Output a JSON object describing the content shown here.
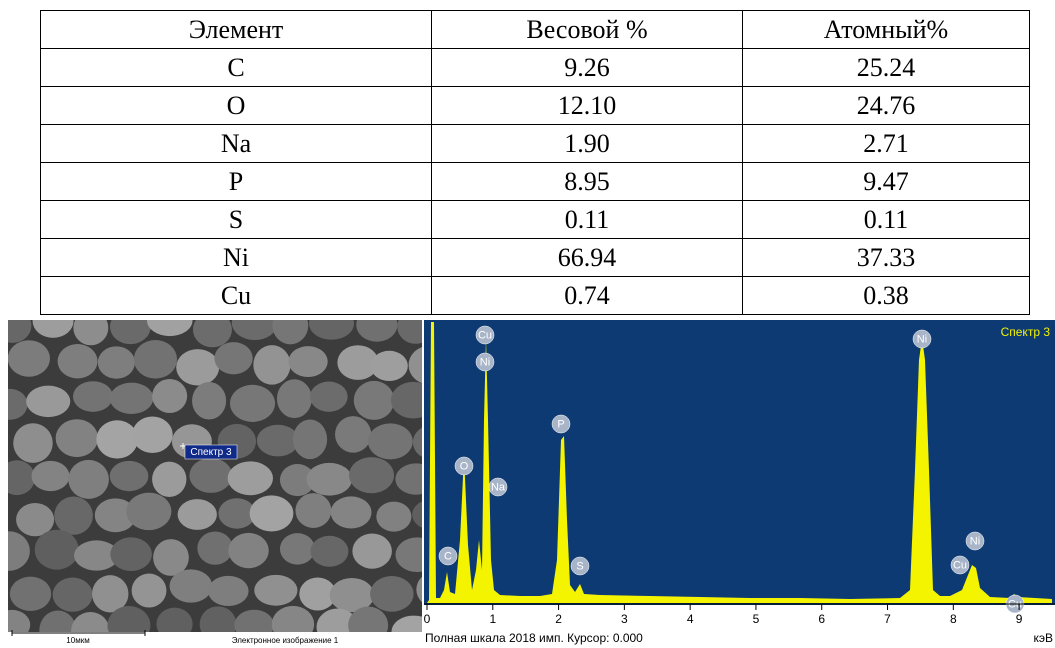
{
  "table": {
    "header": [
      "Элемент",
      "Весовой %",
      "Атомный%"
    ],
    "rows": [
      [
        "C",
        "9.26",
        "25.24"
      ],
      [
        "O",
        "12.10",
        "24.76"
      ],
      [
        "Na",
        "1.90",
        "2.71"
      ],
      [
        "P",
        "8.95",
        "9.47"
      ],
      [
        "S",
        "0.11",
        "0.11"
      ],
      [
        "Ni",
        "66.94",
        "37.33"
      ],
      [
        "Cu",
        "0.74",
        "0.38"
      ]
    ]
  },
  "sem_image": {
    "marker_label": "Спектр 3",
    "scale_label": "10мкм",
    "caption": "Электронное изображение 1"
  },
  "spectrum": {
    "title": "Спектр 3",
    "peak_labels": [
      "Cu",
      "Ni",
      "O",
      "Na",
      "P",
      "S",
      "C",
      "Ni",
      "Ni",
      "Cu",
      "Cu"
    ],
    "xlim": [
      0,
      9.5
    ],
    "xticks": [
      0,
      1,
      2,
      3,
      4,
      5,
      6,
      7,
      8,
      9
    ],
    "footer": "Полная шкала 2018 имп. Курсор: 0.000",
    "unit": "кэВ"
  }
}
